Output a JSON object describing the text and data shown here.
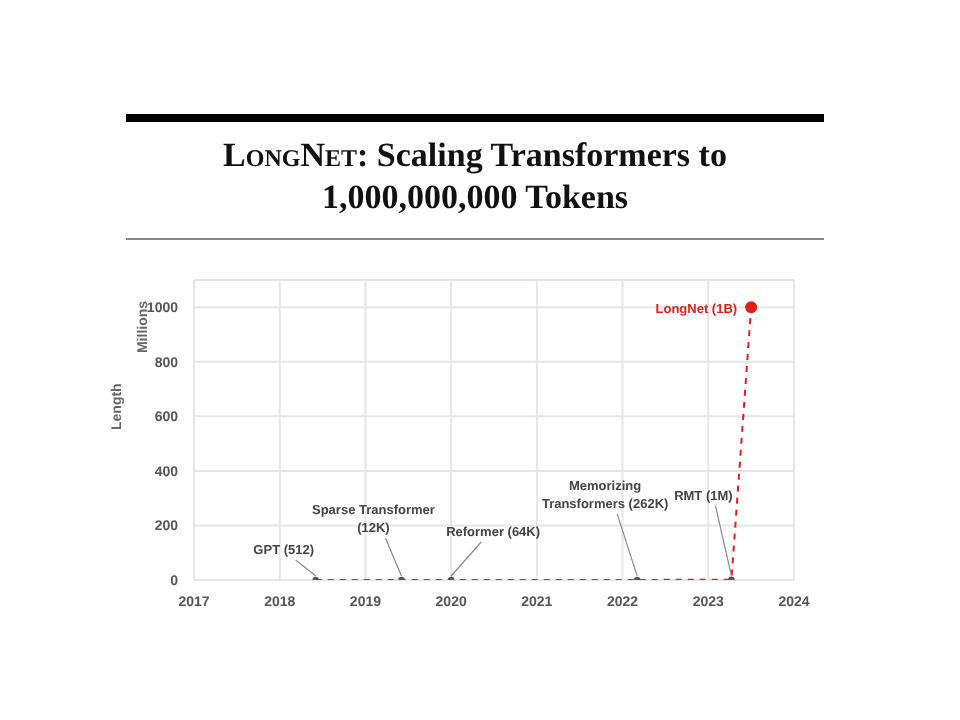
{
  "chart_data": {
    "type": "line",
    "title": "LongNet: Scaling Transformers to 1,000,000,000 Tokens",
    "ylabel": "Length",
    "x": [
      2018.42,
      2019.42,
      2020.0,
      2022.17,
      2023.27,
      2023.5
    ],
    "series": [
      {
        "color": "#e0201b",
        "values": [
          0.000512,
          0.012,
          0.064,
          0.262,
          1,
          1000
        ]
      }
    ],
    "colors": [
      "#555555",
      "#555555",
      "#555555",
      "#555555",
      "#555555",
      "#e0201b"
    ],
    "xlim": [
      2017,
      2024
    ],
    "xticks": [
      2017,
      2018,
      2019,
      2020,
      2021,
      2022,
      2023,
      2024
    ],
    "ylim": [
      0,
      1100
    ],
    "yticks": [
      0,
      200,
      400,
      600,
      800,
      1000
    ],
    "grid": true,
    "marker": "circle",
    "line_style": "dashed",
    "annotations": [
      "Millions",
      {
        "text": "GPT (512)",
        "x": 2018.42,
        "y": 0.000512
      },
      {
        "text": "Sparse Transformer (12K)",
        "x": 2019.42,
        "y": 0.012
      },
      {
        "text": "Reformer (64K)",
        "x": 2020.0,
        "y": 0.064
      },
      {
        "text": "Memorizing Transformers (262K)",
        "x": 2022.17,
        "y": 0.262
      },
      {
        "text": "RMT (1M)",
        "x": 2023.27,
        "y": 1
      },
      {
        "text": "LongNet (1B)",
        "x": 2023.5,
        "y": 1000
      }
    ]
  }
}
